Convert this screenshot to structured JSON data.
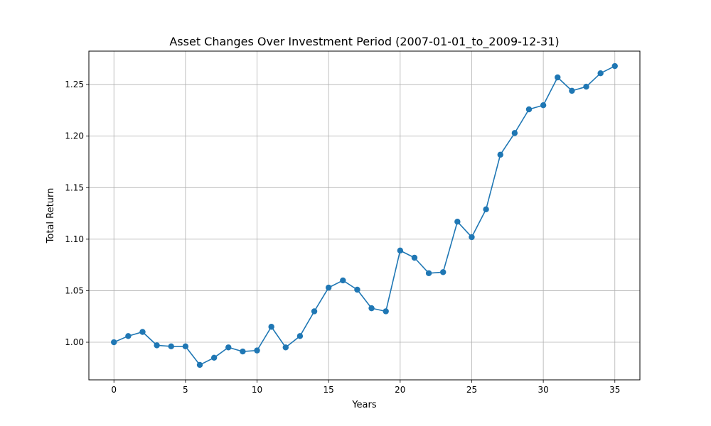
{
  "chart_data": {
    "type": "line",
    "title": "Asset Changes Over Investment Period (2007-01-01_to_2009-12-31)",
    "xlabel": "Years",
    "ylabel": "Total Return",
    "xlim": [
      -1.75,
      36.75
    ],
    "ylim": [
      0.9635,
      1.2825
    ],
    "xticks": [
      0,
      5,
      10,
      15,
      20,
      25,
      30,
      35
    ],
    "yticks": [
      1.0,
      1.05,
      1.1,
      1.15,
      1.2,
      1.25
    ],
    "ytick_labels": [
      "1.00",
      "1.05",
      "1.10",
      "1.15",
      "1.20",
      "1.25"
    ],
    "grid": true,
    "marker": "circle",
    "series": [
      {
        "color": "#1f77b4",
        "x": [
          0,
          1,
          2,
          3,
          4,
          5,
          6,
          7,
          8,
          9,
          10,
          11,
          12,
          13,
          14,
          15,
          16,
          17,
          18,
          19,
          20,
          21,
          22,
          23,
          24,
          25,
          26,
          27,
          28,
          29,
          30,
          31,
          32,
          33,
          34,
          35
        ],
        "y": [
          1.0,
          1.006,
          1.01,
          0.997,
          0.996,
          0.996,
          0.978,
          0.985,
          0.995,
          0.991,
          0.992,
          1.015,
          0.995,
          1.006,
          1.03,
          1.053,
          1.06,
          1.051,
          1.033,
          1.03,
          1.089,
          1.082,
          1.067,
          1.068,
          1.117,
          1.102,
          1.129,
          1.182,
          1.203,
          1.226,
          1.23,
          1.257,
          1.244,
          1.248,
          1.261,
          1.268
        ]
      }
    ]
  }
}
